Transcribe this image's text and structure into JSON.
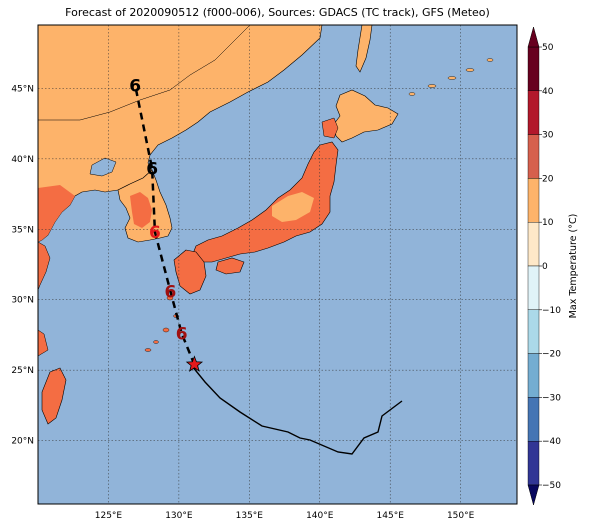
{
  "title": "Forecast of 2020090512 (f000-006), Sources: GDACS (TC track), GFS (Meteo)",
  "map": {
    "lon_ticks": [
      "125°E",
      "130°E",
      "135°E",
      "140°E",
      "145°E",
      "150°E"
    ],
    "lat_ticks": [
      "20°N",
      "25°N",
      "30°N",
      "35°N",
      "40°N",
      "45°N"
    ],
    "extent": {
      "lon": [
        120,
        154
      ],
      "lat": [
        15.5,
        49.5
      ]
    }
  },
  "colorbar": {
    "label": "Max Temperature (°C)",
    "ticks": [
      "50",
      "40",
      "30",
      "20",
      "10",
      "0",
      "−10",
      "−20",
      "−30",
      "−40",
      "−50"
    ],
    "colors": {
      "ocean": "#91b4d9",
      "temp_10_20": "#fdb36a",
      "temp_20_25": "#f46d43",
      "track_line": "#000000",
      "star": "#e41a1c",
      "forecast_symbol": "#cc1111"
    }
  },
  "track": {
    "forecast_points": [
      {
        "label": "6",
        "lon": 126.9,
        "lat": 45.2
      },
      {
        "label": "6",
        "lon": 128.1,
        "lat": 39.3
      },
      {
        "label": "6",
        "lon": 128.3,
        "lat": 34.8
      },
      {
        "label": "6",
        "lon": 129.4,
        "lat": 30.6
      },
      {
        "label": "6",
        "lon": 130.2,
        "lat": 27.6
      }
    ],
    "current_position": {
      "lon": 131.1,
      "lat": 25.4
    }
  }
}
